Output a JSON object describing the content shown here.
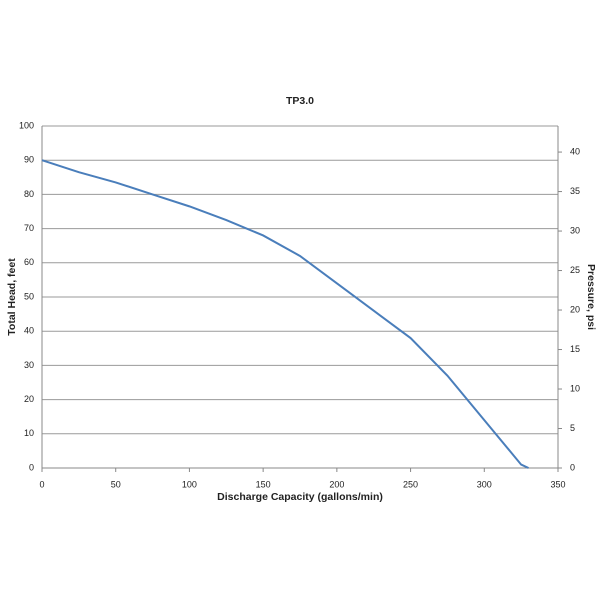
{
  "chart_data": {
    "type": "line",
    "title": "TP3.0",
    "x_label": "Discharge Capacity (gallons/min)",
    "y_label": "Total Head, feet",
    "y2_label": "Pressure, psi",
    "x": [
      0,
      25,
      50,
      75,
      100,
      125,
      150,
      175,
      200,
      225,
      250,
      275,
      300,
      325,
      330
    ],
    "series": [
      {
        "name": "TP3.0",
        "color": "#4a7ebb",
        "values": [
          90,
          86.5,
          83.5,
          80,
          76.5,
          72.5,
          68,
          62,
          54,
          46,
          38,
          27,
          14,
          1,
          0
        ]
      }
    ],
    "xlim": [
      0,
      350
    ],
    "xticks": [
      0,
      50,
      100,
      150,
      200,
      250,
      300,
      350
    ],
    "ylim": [
      0,
      100
    ],
    "yticks": [
      0,
      10,
      20,
      30,
      40,
      50,
      60,
      70,
      80,
      90,
      100
    ],
    "y2lim": [
      0,
      43.3
    ],
    "y2ticks": [
      0,
      5,
      10,
      15,
      20,
      25,
      30,
      35,
      40
    ],
    "grid": true
  }
}
